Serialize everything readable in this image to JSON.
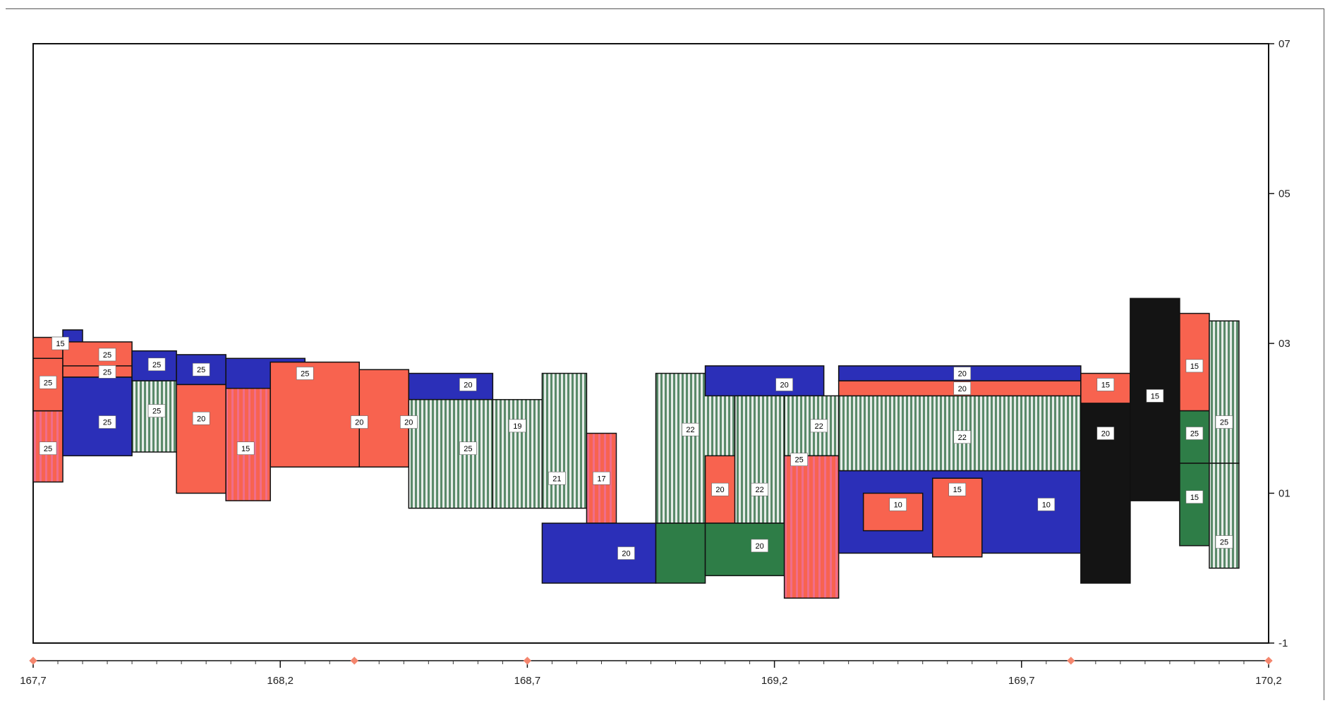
{
  "colors": {
    "red": "#f8634f",
    "blue": "#2b2fb8",
    "green": "#2e7d47",
    "black": "#141414",
    "stripe_green": "#5a8a6a",
    "stripe_light": "#e6ece8",
    "pink_stripe": "#f06d8a",
    "outline": "#111111"
  },
  "y_axis": {
    "ticks": [
      {
        "value": 7,
        "label": "07"
      },
      {
        "value": 5,
        "label": "05"
      },
      {
        "value": 3,
        "label": "03"
      },
      {
        "value": 1,
        "label": "01"
      },
      {
        "value": -1,
        "label": "-1"
      }
    ]
  },
  "x_axis": {
    "range": [
      167.7,
      170.2
    ],
    "ticks": [
      {
        "value": 167.7,
        "label": "167,7"
      },
      {
        "value": 168.2,
        "label": "168,2"
      },
      {
        "value": 168.7,
        "label": "168,7"
      },
      {
        "value": 169.2,
        "label": "169,2"
      },
      {
        "value": 169.7,
        "label": "169,7"
      },
      {
        "value": 170.2,
        "label": "170,2"
      }
    ],
    "markers": [
      167.7,
      168.35,
      168.7,
      169.8,
      170.2
    ]
  },
  "layers": [
    {
      "x0": 167.7,
      "x1": 167.76,
      "top": 3.08,
      "bottom": 2.1,
      "fill": "red",
      "label": "15",
      "lx": 167.755,
      "ly": 3.0
    },
    {
      "x0": 167.76,
      "x1": 167.8,
      "top": 3.18,
      "bottom": 2.8,
      "fill": "blue"
    },
    {
      "x0": 167.7,
      "x1": 167.76,
      "top": 2.1,
      "bottom": 1.15,
      "fill": "pinkstripe",
      "label": "25",
      "lx": 167.73,
      "ly": 1.6
    },
    {
      "x0": 167.7,
      "x1": 167.76,
      "top": 2.8,
      "bottom": 2.1,
      "fill": "red",
      "label": "25",
      "lx": 167.73,
      "ly": 2.48
    },
    {
      "x0": 167.76,
      "x1": 167.9,
      "top": 3.02,
      "bottom": 2.6,
      "fill": "red",
      "label": "25",
      "lx": 167.85,
      "ly": 2.85
    },
    {
      "x0": 167.76,
      "x1": 167.9,
      "top": 2.7,
      "bottom": 2.55,
      "fill": "red",
      "label": "25",
      "lx": 167.85,
      "ly": 2.62
    },
    {
      "x0": 167.76,
      "x1": 167.9,
      "top": 2.55,
      "bottom": 1.5,
      "fill": "blue",
      "label": "25",
      "lx": 167.85,
      "ly": 1.95
    },
    {
      "x0": 167.9,
      "x1": 167.99,
      "top": 2.9,
      "bottom": 2.5,
      "fill": "blue",
      "label": "25",
      "lx": 167.95,
      "ly": 2.72
    },
    {
      "x0": 167.9,
      "x1": 167.99,
      "top": 2.5,
      "bottom": 1.55,
      "fill": "stripe",
      "label": "25",
      "lx": 167.95,
      "ly": 2.1
    },
    {
      "x0": 167.99,
      "x1": 168.09,
      "top": 2.85,
      "bottom": 2.45,
      "fill": "blue",
      "label": "25",
      "lx": 168.04,
      "ly": 2.65
    },
    {
      "x0": 167.99,
      "x1": 168.09,
      "top": 2.45,
      "bottom": 1.0,
      "fill": "red",
      "label": "20",
      "lx": 168.04,
      "ly": 2.0
    },
    {
      "x0": 168.09,
      "x1": 168.25,
      "top": 2.8,
      "bottom": 2.4,
      "fill": "blue",
      "label": "25",
      "lx": 168.25,
      "ly": 2.6
    },
    {
      "x0": 168.09,
      "x1": 168.18,
      "top": 2.4,
      "bottom": 0.9,
      "fill": "pinkstripe",
      "label": "15",
      "lx": 168.13,
      "ly": 1.6
    },
    {
      "x0": 168.18,
      "x1": 168.36,
      "top": 2.75,
      "bottom": 1.35,
      "fill": "red",
      "label": "20",
      "lx": 168.36,
      "ly": 1.95
    },
    {
      "x0": 168.36,
      "x1": 168.46,
      "top": 2.65,
      "bottom": 1.35,
      "fill": "red",
      "label": "20",
      "lx": 168.46,
      "ly": 1.95
    },
    {
      "x0": 168.46,
      "x1": 168.63,
      "top": 2.6,
      "bottom": 2.25,
      "fill": "blue",
      "label": "20",
      "lx": 168.58,
      "ly": 2.45
    },
    {
      "x0": 168.46,
      "x1": 168.63,
      "top": 2.25,
      "bottom": 0.8,
      "fill": "stripe",
      "label": "25",
      "lx": 168.58,
      "ly": 1.6
    },
    {
      "x0": 168.63,
      "x1": 168.73,
      "top": 2.25,
      "bottom": 0.8,
      "fill": "stripe",
      "label": "19",
      "lx": 168.68,
      "ly": 1.9
    },
    {
      "x0": 168.73,
      "x1": 168.82,
      "top": 2.6,
      "bottom": 0.8,
      "fill": "stripe",
      "label": "21",
      "lx": 168.76,
      "ly": 1.2
    },
    {
      "x0": 168.82,
      "x1": 168.88,
      "top": 1.8,
      "bottom": 0.6,
      "fill": "pinkstripe",
      "label": "17",
      "lx": 168.85,
      "ly": 1.2
    },
    {
      "x0": 168.73,
      "x1": 168.96,
      "top": 0.6,
      "bottom": -0.2,
      "fill": "blue",
      "label": "20",
      "lx": 168.9,
      "ly": 0.2
    },
    {
      "x0": 168.96,
      "x1": 169.12,
      "top": 2.6,
      "bottom": 0.6,
      "fill": "stripe",
      "label": "22",
      "lx": 169.03,
      "ly": 1.85
    },
    {
      "x0": 168.96,
      "x1": 169.06,
      "top": 0.6,
      "bottom": -0.2,
      "fill": "green"
    },
    {
      "x0": 169.06,
      "x1": 169.3,
      "top": 2.7,
      "bottom": 2.3,
      "fill": "blue",
      "label": "20",
      "lx": 169.22,
      "ly": 2.45
    },
    {
      "x0": 169.06,
      "x1": 169.12,
      "top": 1.5,
      "bottom": 0.6,
      "fill": "red",
      "label": "20",
      "lx": 169.09,
      "ly": 1.05
    },
    {
      "x0": 169.12,
      "x1": 169.22,
      "top": 2.3,
      "bottom": 0.6,
      "fill": "stripe",
      "label": "22",
      "lx": 169.17,
      "ly": 1.05
    },
    {
      "x0": 169.06,
      "x1": 169.22,
      "top": 0.6,
      "bottom": -0.1,
      "fill": "green",
      "label": "20",
      "lx": 169.17,
      "ly": 0.3
    },
    {
      "x0": 169.22,
      "x1": 169.33,
      "top": 2.3,
      "bottom": 1.5,
      "fill": "stripe",
      "label": "22",
      "lx": 169.29,
      "ly": 1.9
    },
    {
      "x0": 169.22,
      "x1": 169.33,
      "top": 1.5,
      "bottom": -0.4,
      "fill": "pinkstripe",
      "label": "25",
      "lx": 169.25,
      "ly": 1.45
    },
    {
      "x0": 169.33,
      "x1": 169.82,
      "top": 2.7,
      "bottom": 2.5,
      "fill": "blue",
      "label": "20",
      "lx": 169.58,
      "ly": 2.6
    },
    {
      "x0": 169.33,
      "x1": 169.82,
      "top": 2.3,
      "bottom": 1.3,
      "fill": "stripe",
      "label": "22",
      "lx": 169.58,
      "ly": 1.75
    },
    {
      "x0": 169.33,
      "x1": 169.82,
      "top": 2.5,
      "bottom": 2.3,
      "fill": "red",
      "label": "20",
      "lx": 169.58,
      "ly": 2.4
    },
    {
      "x0": 169.33,
      "x1": 169.82,
      "top": 1.3,
      "bottom": 0.2,
      "fill": "blue",
      "label": "10",
      "lx": 169.75,
      "ly": 0.85
    },
    {
      "x0": 169.38,
      "x1": 169.5,
      "top": 1.0,
      "bottom": 0.5,
      "fill": "red",
      "label": "10",
      "lx": 169.45,
      "ly": 0.85
    },
    {
      "x0": 169.52,
      "x1": 169.62,
      "top": 1.2,
      "bottom": 0.15,
      "fill": "red",
      "label": "15",
      "lx": 169.57,
      "ly": 1.05
    },
    {
      "x0": 169.82,
      "x1": 169.92,
      "top": 2.6,
      "bottom": 2.2,
      "fill": "red",
      "label": "15",
      "lx": 169.87,
      "ly": 2.45
    },
    {
      "x0": 169.82,
      "x1": 169.92,
      "top": 2.2,
      "bottom": -0.2,
      "fill": "black",
      "label": "20",
      "lx": 169.87,
      "ly": 1.8
    },
    {
      "x0": 169.92,
      "x1": 170.02,
      "top": 3.6,
      "bottom": 0.9,
      "fill": "black",
      "label": "15",
      "lx": 169.97,
      "ly": 2.3
    },
    {
      "x0": 170.02,
      "x1": 170.08,
      "top": 3.4,
      "bottom": 2.1,
      "fill": "red",
      "label": "15",
      "lx": 170.05,
      "ly": 2.7
    },
    {
      "x0": 170.02,
      "x1": 170.08,
      "top": 2.1,
      "bottom": 1.4,
      "fill": "green",
      "label": "25",
      "lx": 170.05,
      "ly": 1.8
    },
    {
      "x0": 170.02,
      "x1": 170.08,
      "top": 1.4,
      "bottom": 0.3,
      "fill": "green",
      "label": "15",
      "lx": 170.05,
      "ly": 0.95
    },
    {
      "x0": 170.08,
      "x1": 170.14,
      "top": 3.3,
      "bottom": 1.4,
      "fill": "stripe",
      "label": "25",
      "lx": 170.11,
      "ly": 1.95
    },
    {
      "x0": 170.08,
      "x1": 170.14,
      "top": 1.4,
      "bottom": 0.0,
      "fill": "stripe",
      "label": "25",
      "lx": 170.11,
      "ly": 0.35
    }
  ]
}
